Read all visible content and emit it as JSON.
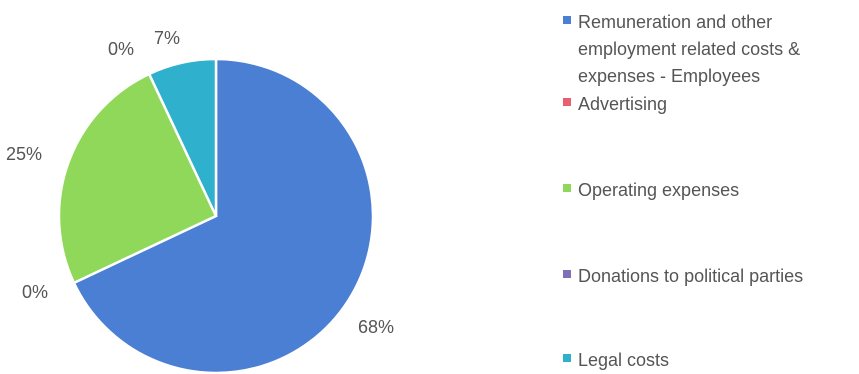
{
  "chart_data": {
    "type": "pie",
    "title": "",
    "slices": [
      {
        "label": "Remuneration and other employment related costs & expenses - Employees",
        "value": 68,
        "display": "68%",
        "color": "#4a7fd4"
      },
      {
        "label": "Advertising",
        "value": 0,
        "display": "0%",
        "color": "#e8606f"
      },
      {
        "label": "Operating expenses",
        "value": 25,
        "display": "25%",
        "color": "#8fd85a"
      },
      {
        "label": "Donations to political parties",
        "value": 0,
        "display": "0%",
        "color": "#7e6fb8"
      },
      {
        "label": "Legal costs",
        "value": 7,
        "display": "7%",
        "color": "#2fb0cc"
      }
    ],
    "legend_position": "right"
  }
}
